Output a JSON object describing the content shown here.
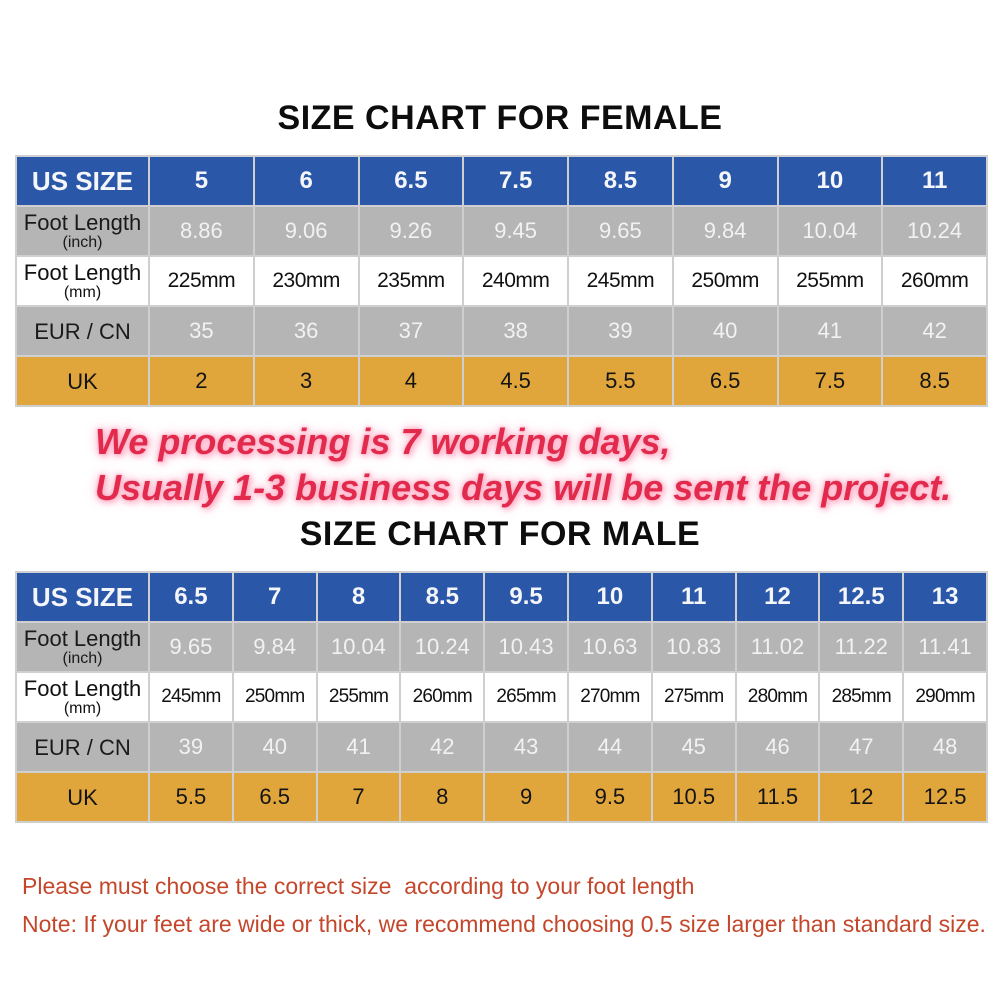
{
  "female_section": {
    "title": "SIZE CHART FOR FEMALE",
    "table": {
      "rows": [
        {
          "kind": "header",
          "label": "US SIZE",
          "sublabel": "",
          "values": [
            "5",
            "6",
            "6.5",
            "7.5",
            "8.5",
            "9",
            "10",
            "11"
          ]
        },
        {
          "kind": "gray",
          "label": "Foot Length",
          "sublabel": "(inch)",
          "values": [
            "8.86",
            "9.06",
            "9.26",
            "9.45",
            "9.65",
            "9.84",
            "10.04",
            "10.24"
          ]
        },
        {
          "kind": "white",
          "label": "Foot Length",
          "sublabel": "(mm)",
          "values": [
            "225mm",
            "230mm",
            "235mm",
            "240mm",
            "245mm",
            "250mm",
            "255mm",
            "260mm"
          ]
        },
        {
          "kind": "gray",
          "label": "EUR / CN",
          "sublabel": "",
          "values": [
            "35",
            "36",
            "37",
            "38",
            "39",
            "40",
            "41",
            "42"
          ]
        },
        {
          "kind": "gold",
          "label": "UK",
          "sublabel": "",
          "values": [
            "2",
            "3",
            "4",
            "4.5",
            "5.5",
            "6.5",
            "7.5",
            "8.5"
          ]
        }
      ]
    }
  },
  "shipping_notice": {
    "line1": "We processing is 7 working days,",
    "line2": "Usually 1-3 business days will be sent the project."
  },
  "male_section": {
    "title": "SIZE CHART FOR MALE",
    "table": {
      "rows": [
        {
          "kind": "header",
          "label": "US SIZE",
          "sublabel": "",
          "values": [
            "6.5",
            "7",
            "8",
            "8.5",
            "9.5",
            "10",
            "11",
            "12",
            "12.5",
            "13"
          ]
        },
        {
          "kind": "gray",
          "label": "Foot Length",
          "sublabel": "(inch)",
          "values": [
            "9.65",
            "9.84",
            "10.04",
            "10.24",
            "10.43",
            "10.63",
            "10.83",
            "11.02",
            "11.22",
            "11.41"
          ]
        },
        {
          "kind": "white",
          "label": "Foot Length",
          "sublabel": "(mm)",
          "values": [
            "245mm",
            "250mm",
            "255mm",
            "260mm",
            "265mm",
            "270mm",
            "275mm",
            "280mm",
            "285mm",
            "290mm"
          ]
        },
        {
          "kind": "gray",
          "label": "EUR / CN",
          "sublabel": "",
          "values": [
            "39",
            "40",
            "41",
            "42",
            "43",
            "44",
            "45",
            "46",
            "47",
            "48"
          ]
        },
        {
          "kind": "gold",
          "label": "UK",
          "sublabel": "",
          "values": [
            "5.5",
            "6.5",
            "7",
            "8",
            "9",
            "9.5",
            "10.5",
            "11.5",
            "12",
            "12.5"
          ]
        }
      ]
    }
  },
  "footer_notes": {
    "note1": "Please must choose the correct size  according to your foot length",
    "note2": "Note: If your feet are wide or thick, we recommend choosing 0.5 size larger than standard size."
  },
  "colors": {
    "header_blue": "#2b57a8",
    "row_gray": "#b5b5b5",
    "row_gold": "#e0a63c",
    "notice_red": "#e22a4d",
    "notice_glow_pink": "#ffb7cd",
    "footer_red": "#c4472b",
    "border_gray": "#cfcfd2"
  }
}
